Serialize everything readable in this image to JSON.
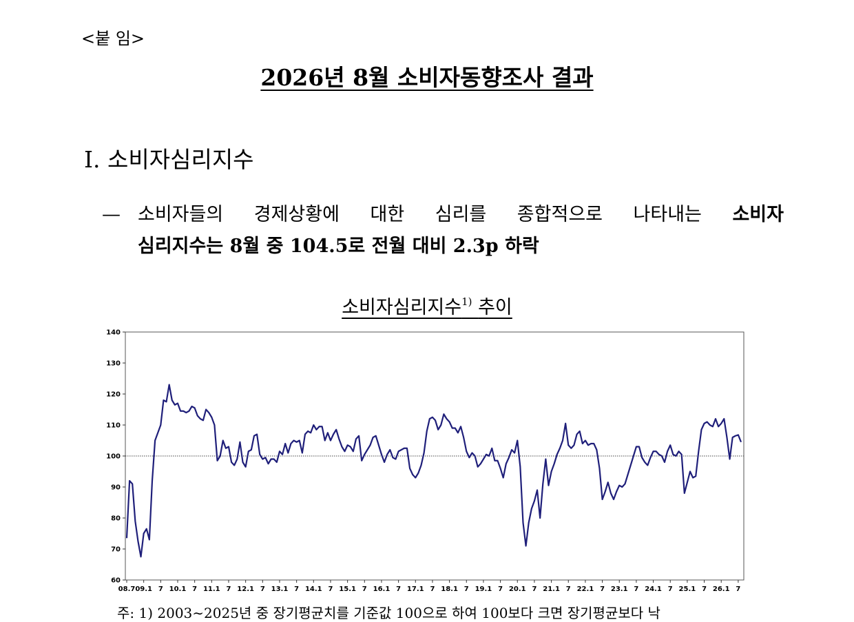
{
  "attachment_label": "<붙 임>",
  "title": "2026년 8월 소비자동향조사 결과",
  "section_heading": "Ⅰ. 소비자심리지수",
  "bullet": {
    "dash": "—",
    "line1_normal": "소비자들의 경제상황에 대한 심리를 종합적으로 나타내는",
    "line1_bold": "소비자",
    "line2_bold": "심리지수는 8월 중 104.5로 전월 대비 2.3p 하락"
  },
  "chart_title": {
    "main": "소비자심리지수",
    "superscript": "1)",
    "suffix": "추이"
  },
  "chart_data": {
    "type": "line",
    "title": "소비자심리지수1) 추이",
    "xlabel": "",
    "ylabel": "",
    "ylim": [
      60,
      140
    ],
    "y_ticks": [
      60,
      70,
      80,
      90,
      100,
      110,
      120,
      130,
      140
    ],
    "x_tick_labels": [
      "08.7",
      "09.1",
      "7",
      "10.1",
      "7",
      "11.1",
      "7",
      "12.1",
      "7",
      "13.1",
      "7",
      "14.1",
      "7",
      "15.1",
      "7",
      "16.1",
      "7",
      "17.1",
      "7",
      "18.1",
      "7",
      "19.1",
      "7",
      "20.1",
      "7",
      "21.1",
      "7",
      "22.1",
      "7",
      "23.1",
      "7",
      "24.1",
      "7",
      "25.1",
      "7",
      "26.1",
      "7"
    ],
    "reference_line": 100,
    "line_color": "#1f1f7a",
    "series": [
      {
        "name": "",
        "start": "2008-07",
        "values": [
          73.5,
          92.0,
          91.0,
          79.0,
          72.5,
          67.5,
          75.0,
          76.5,
          73.0,
          92.0,
          105.0,
          107.5,
          110.0,
          118.0,
          117.5,
          123.0,
          118.0,
          116.5,
          117.0,
          114.5,
          114.5,
          114.0,
          114.5,
          116.0,
          115.5,
          113.0,
          112.0,
          111.5,
          115.0,
          114.0,
          112.5,
          110.0,
          98.5,
          100.0,
          105.0,
          102.5,
          103.0,
          98.0,
          97.0,
          99.0,
          104.5,
          98.0,
          96.5,
          101.5,
          102.0,
          106.5,
          107.0,
          100.5,
          99.0,
          99.5,
          97.5,
          99.0,
          99.0,
          98.0,
          101.5,
          100.5,
          104.0,
          101.0,
          104.0,
          105.0,
          104.5,
          105.0,
          101.0,
          107.0,
          108.0,
          107.5,
          110.0,
          108.5,
          109.5,
          109.5,
          105.0,
          107.5,
          105.0,
          107.0,
          108.5,
          105.5,
          103.0,
          101.5,
          103.5,
          103.0,
          101.5,
          105.5,
          106.5,
          98.5,
          100.5,
          102.0,
          103.5,
          106.0,
          106.5,
          103.5,
          100.5,
          98.0,
          100.5,
          102.0,
          99.5,
          99.0,
          101.5,
          102.0,
          102.5,
          102.5,
          96.0,
          94.0,
          93.0,
          94.5,
          97.0,
          101.0,
          108.0,
          112.0,
          112.5,
          111.5,
          108.5,
          110.0,
          113.5,
          112.0,
          111.0,
          109.0,
          109.0,
          107.5,
          109.5,
          106.0,
          101.5,
          99.5,
          101.0,
          100.0,
          96.5,
          97.5,
          99.0,
          100.5,
          100.0,
          102.5,
          98.5,
          98.5,
          96.0,
          93.0,
          97.5,
          99.5,
          102.0,
          101.0,
          105.0,
          96.5,
          78.5,
          71.0,
          78.5,
          83.0,
          85.5,
          89.0,
          80.0,
          91.0,
          99.0,
          90.5,
          95.0,
          97.5,
          100.5,
          102.5,
          105.0,
          110.5,
          103.5,
          102.5,
          103.5,
          107.0,
          108.0,
          104.0,
          105.0,
          103.5,
          104.0,
          104.0,
          102.0,
          96.0,
          86.0,
          88.5,
          91.5,
          88.0,
          86.0,
          88.5,
          90.5,
          90.0,
          91.0,
          94.0,
          97.0,
          100.0,
          103.0,
          103.0,
          99.5,
          98.0,
          97.0,
          99.5,
          101.5,
          101.5,
          100.5,
          100.0,
          98.0,
          101.5,
          103.5,
          100.5,
          100.0,
          101.5,
          100.5,
          88.0,
          91.5,
          95.0,
          93.0,
          93.5,
          101.5,
          108.5,
          110.5,
          111.0,
          110.0,
          109.5,
          112.0,
          109.5,
          110.5,
          112.0,
          106.0,
          99.0,
          106.0,
          106.5,
          106.8,
          104.5
        ]
      }
    ]
  },
  "footnote": "주: 1) 2003∼2025년 중 장기평균치를 기준값 100으로 하여 100보다 크면 장기평균보다 낙"
}
